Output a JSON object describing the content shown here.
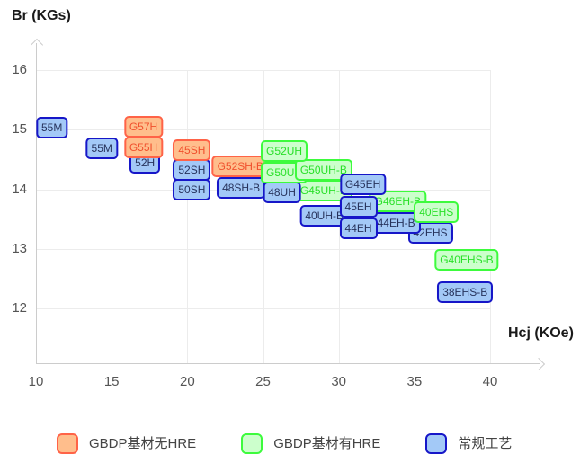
{
  "chart_data": {
    "type": "scatter",
    "title": "",
    "xlabel": "Hcj (KOe)",
    "ylabel": "Br (KGs)",
    "xlim": [
      10,
      43.5
    ],
    "ylim": [
      11.1,
      16.5
    ],
    "x_ticks": [
      10,
      15,
      20,
      25,
      30,
      35,
      40
    ],
    "y_ticks": [
      16,
      15,
      14,
      13,
      12
    ],
    "grid": true,
    "legend_position": "bottom",
    "series": [
      {
        "name": "GBDP基材无HRE",
        "fill": "#ffbe8c",
        "border": "#ff6347",
        "text": "#f0502d",
        "points": [
          {
            "label": "G57H",
            "x": 17.1,
            "y": 15.05,
            "z": 3
          },
          {
            "label": "G55H",
            "x": 17.1,
            "y": 14.7,
            "z": 2
          },
          {
            "label": "45SH",
            "x": 20.3,
            "y": 14.66,
            "z": 3
          },
          {
            "label": "G52SH-B",
            "x": 23.5,
            "y": 14.38,
            "z": 2
          }
        ]
      },
      {
        "name": "GBDP基材有HRE",
        "fill": "#ccffcc",
        "border": "#3dfb3d",
        "text": "#29e029",
        "points": [
          {
            "label": "G52UH",
            "x": 26.4,
            "y": 14.64,
            "z": 3
          },
          {
            "label": "G50UH",
            "x": 26.4,
            "y": 14.28,
            "z": 2
          },
          {
            "label": "G50UH-B",
            "x": 29.0,
            "y": 14.33,
            "z": 2
          },
          {
            "label": "G45UH-B",
            "x": 29.0,
            "y": 13.97,
            "z": 1
          },
          {
            "label": "G46EH-B",
            "x": 33.9,
            "y": 13.8,
            "z": 2
          },
          {
            "label": "40EHS",
            "x": 36.45,
            "y": 13.61,
            "z": 3
          },
          {
            "label": "G40EHS-B",
            "x": 38.45,
            "y": 12.81,
            "z": 1
          }
        ]
      },
      {
        "name": "常规工艺",
        "fill": "#a3c9f7",
        "border": "#1616c8",
        "text": "#27335c",
        "points": [
          {
            "label": "55M",
            "x": 11.05,
            "y": 15.03,
            "z": 1
          },
          {
            "label": "55M",
            "x": 14.35,
            "y": 14.68,
            "z": 1
          },
          {
            "label": "52H",
            "x": 17.2,
            "y": 14.45,
            "z": 1
          },
          {
            "label": "52SH",
            "x": 20.3,
            "y": 14.32,
            "z": 2
          },
          {
            "label": "50SH",
            "x": 20.3,
            "y": 13.99,
            "z": 1
          },
          {
            "label": "48SH-B",
            "x": 23.55,
            "y": 14.02,
            "z": 1
          },
          {
            "label": "48UH",
            "x": 26.25,
            "y": 13.94,
            "z": 1
          },
          {
            "label": "40UH-B",
            "x": 29.05,
            "y": 13.55,
            "z": 1
          },
          {
            "label": "G45EH",
            "x": 31.6,
            "y": 14.08,
            "z": 4
          },
          {
            "label": "45EH",
            "x": 31.3,
            "y": 13.7,
            "z": 3
          },
          {
            "label": "44EH",
            "x": 31.3,
            "y": 13.34,
            "z": 3
          },
          {
            "label": "44EH-B",
            "x": 33.8,
            "y": 13.44,
            "z": 2
          },
          {
            "label": "42EHS",
            "x": 36.05,
            "y": 13.27,
            "z": 1
          },
          {
            "label": "38EHS-B",
            "x": 38.35,
            "y": 12.27,
            "z": 1
          }
        ]
      }
    ]
  }
}
